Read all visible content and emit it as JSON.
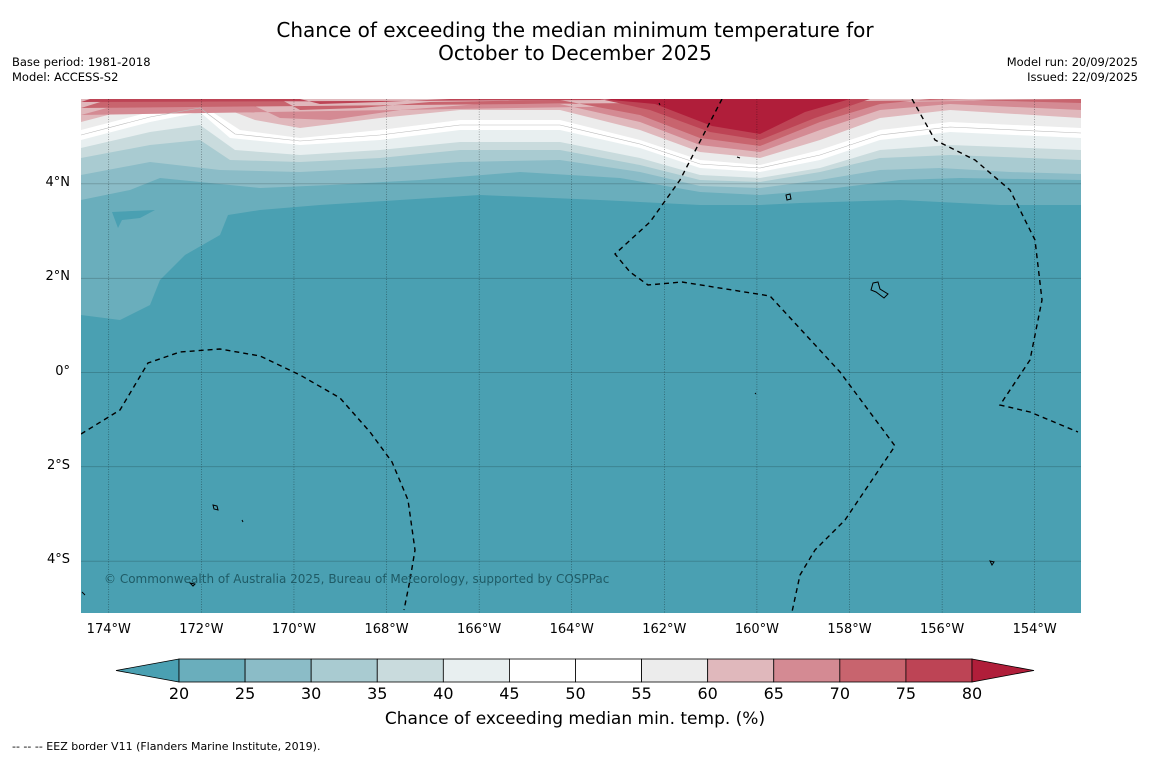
{
  "title": {
    "line1": "Chance of exceeding the median minimum temperature for",
    "line2": "October to December 2025"
  },
  "meta_left": {
    "base_period": "Base period: 1981-2018",
    "model": "Model: ACCESS-S2"
  },
  "meta_right": {
    "model_run": "Model run: 20/09/2025",
    "issued": "Issued: 22/09/2025"
  },
  "map": {
    "lat_labels": [
      "4°N",
      "2°N",
      "0°",
      "2°S",
      "4°S"
    ],
    "lon_labels": [
      "174°W",
      "172°W",
      "170°W",
      "168°W",
      "166°W",
      "164°W",
      "162°W",
      "160°W",
      "158°W",
      "156°W",
      "154°W"
    ],
    "lat_values": [
      4,
      2,
      0,
      -2,
      -4
    ],
    "lon_values": [
      -174,
      -172,
      -170,
      -168,
      -166,
      -164,
      -162,
      -160,
      -158,
      -156,
      -154
    ],
    "lon_range": [
      -174.6,
      -153.0
    ],
    "lat_range": [
      -5.1,
      5.8
    ],
    "copyright": "© Commonwealth of Australia 2025, Bureau of Meteorology, supported by COSPPac",
    "colors": {
      "below_20": "#4aa0b2",
      "20_25": "#6aaebc",
      "25_30": "#8bbcc7",
      "30_35": "#a9cbd1",
      "35_40": "#c9dbdd",
      "40_45": "#e8eff0",
      "45_50": "#ffffff",
      "50_55": "#ffffff",
      "55_60": "#ececec",
      "60_65": "#e0b8bc",
      "65_70": "#d48a93",
      "70_75": "#c8646e",
      "75_80": "#bd4455",
      "above_80": "#b01e3a"
    }
  },
  "colorbar": {
    "ticks": [
      "20",
      "25",
      "30",
      "35",
      "40",
      "45",
      "50",
      "55",
      "60",
      "65",
      "70",
      "75",
      "80"
    ],
    "colors": [
      "#6aaebc",
      "#8bbcc7",
      "#a9cbd1",
      "#c9dbdd",
      "#e8eff0",
      "#ffffff",
      "#ffffff",
      "#ececec",
      "#e0b8bc",
      "#d48a93",
      "#c8646e",
      "#bd4455"
    ],
    "low_extend_color": "#4aa0b2",
    "high_extend_color": "#b01e3a",
    "label": "Chance of exceeding median min. temp. (%)"
  },
  "footnote": "--  --  -- EEZ border V11 (Flanders Marine Institute, 2019)."
}
